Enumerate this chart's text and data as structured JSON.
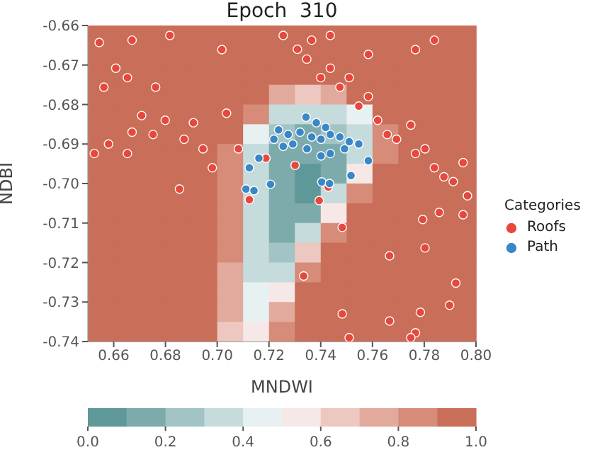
{
  "chart_data": [
    {
      "type": "scatter",
      "title": "Epoch  310",
      "xlabel": "MNDWI",
      "ylabel": "NDBI",
      "legend_title": "Categories",
      "legend": "right",
      "marker": "circle",
      "xlim": [
        0.65,
        0.8
      ],
      "xticks": [
        0.66,
        0.68,
        {
          "value": 0.7,
          "label": "0.70"
        },
        0.72,
        0.74,
        0.76,
        0.78,
        {
          "value": 0.8,
          "label": "0.80"
        }
      ],
      "ylim": [
        -0.74,
        -0.66
      ],
      "yticks": [
        -0.74,
        -0.73,
        -0.72,
        -0.71,
        {
          "value": -0.7,
          "label": "-0.70"
        },
        -0.69,
        -0.68,
        -0.67,
        -0.66
      ],
      "series": [
        {
          "name": "Roofs",
          "color": "#e8473c",
          "x": [
            0.7255,
            0.7346,
            0.74,
            0.7474,
            0.7547,
            0.762,
            0.7693,
            0.7766,
            0.7839,
            0.7912,
            0.7967,
            0.731,
            0.7437,
            0.7584,
            0.7657,
            0.7748,
            0.7803,
            0.7876,
            0.795,
            0.751,
            0.7365,
            0.7437,
            0.7584,
            0.7766,
            0.7839,
            0.6544,
            0.6671,
            0.6817,
            0.7018,
            0.6608,
            0.6653,
            0.6562,
            0.6762,
            0.6708,
            0.6799,
            0.6908,
            0.6671,
            0.658,
            0.6752,
            0.6872,
            0.6945,
            0.6653,
            0.6981,
            0.6854,
            0.6525,
            0.7036,
            0.7082,
            0.7794,
            0.7858,
            0.7803,
            0.7666,
            0.7922,
            0.7898,
            0.7785,
            0.7483,
            0.7666,
            0.7766,
            0.7748,
            0.751,
            0.795,
            0.7301,
            0.7394,
            0.7334,
            0.7188,
            0.7124,
            0.7429,
            0.7483
          ],
          "values": [
            -0.6625,
            -0.6685,
            -0.6732,
            -0.6756,
            -0.6804,
            -0.684,
            -0.6888,
            -0.6924,
            -0.696,
            -0.6995,
            -0.7031,
            -0.666,
            -0.6708,
            -0.678,
            -0.6876,
            -0.6852,
            -0.6912,
            -0.6983,
            -0.6947,
            -0.6732,
            -0.6637,
            -0.6625,
            -0.6673,
            -0.6661,
            -0.6637,
            -0.6643,
            -0.6637,
            -0.6625,
            -0.6661,
            -0.6708,
            -0.6732,
            -0.6756,
            -0.6756,
            -0.6828,
            -0.684,
            -0.6846,
            -0.687,
            -0.69,
            -0.6876,
            -0.6888,
            -0.6912,
            -0.6924,
            -0.696,
            -0.7014,
            -0.6924,
            -0.6822,
            -0.6912,
            -0.7091,
            -0.7073,
            -0.7163,
            -0.7183,
            -0.7252,
            -0.7308,
            -0.7326,
            -0.733,
            -0.7348,
            -0.7378,
            -0.739,
            -0.739,
            -0.7079,
            -0.6954,
            -0.7043,
            -0.7234,
            -0.6936,
            -0.7041,
            -0.7009,
            -0.7111
          ]
        },
        {
          "name": "Path",
          "color": "#3a87c8",
          "x": [
            0.7343,
            0.7383,
            0.7237,
            0.7274,
            0.732,
            0.7365,
            0.7401,
            0.7437,
            0.7474,
            0.751,
            0.7547,
            0.7219,
            0.7292,
            0.7347,
            0.7401,
            0.7437,
            0.7492,
            0.7584,
            0.7124,
            0.7161,
            0.7111,
            0.7142,
            0.7206,
            0.7404,
            0.7434,
            0.7517,
            0.7419,
            0.7255
          ],
          "values": [
            -0.6832,
            -0.6846,
            -0.6864,
            -0.6876,
            -0.687,
            -0.6882,
            -0.6888,
            -0.6876,
            -0.6882,
            -0.6894,
            -0.69,
            -0.6888,
            -0.69,
            -0.6912,
            -0.693,
            -0.6924,
            -0.6912,
            -0.6942,
            -0.696,
            -0.6936,
            -0.7014,
            -0.7018,
            -0.7002,
            -0.6996,
            -0.7,
            -0.698,
            -0.6858,
            -0.6906
          ]
        }
      ]
    },
    {
      "type": "heatmap",
      "categories": [
        null,
        null,
        null,
        null,
        null,
        null,
        null,
        null,
        null,
        null,
        null,
        null,
        null,
        null,
        null
      ],
      "y_categories": [
        null,
        null,
        null,
        null,
        null,
        null,
        null,
        null,
        null,
        null,
        null,
        null,
        null,
        null,
        null,
        null
      ],
      "cells": [
        [
          0.95,
          0.95,
          0.95,
          0.95,
          0.95,
          0.95,
          0.95,
          0.95,
          0.95,
          0.95,
          0.95,
          0.95,
          0.95,
          0.95,
          0.95
        ],
        [
          0.95,
          0.95,
          0.95,
          0.95,
          0.95,
          0.95,
          0.95,
          0.95,
          0.95,
          0.95,
          0.95,
          0.95,
          0.95,
          0.95,
          0.95
        ],
        [
          0.95,
          0.95,
          0.95,
          0.95,
          0.95,
          0.95,
          0.95,
          0.95,
          0.95,
          0.95,
          0.95,
          0.95,
          0.95,
          0.95,
          0.95
        ],
        [
          0.95,
          0.95,
          0.95,
          0.95,
          0.95,
          0.95,
          0.9,
          0.7,
          0.65,
          0.7,
          0.9,
          0.95,
          0.95,
          0.95,
          0.95
        ],
        [
          0.95,
          0.95,
          0.95,
          0.95,
          0.95,
          0.95,
          0.8,
          0.3,
          0.3,
          0.3,
          0.4,
          0.9,
          0.95,
          0.95,
          0.95
        ],
        [
          0.95,
          0.95,
          0.95,
          0.95,
          0.95,
          0.9,
          0.45,
          0.2,
          0.15,
          0.2,
          0.3,
          0.8,
          0.95,
          0.95,
          0.95
        ],
        [
          0.95,
          0.95,
          0.95,
          0.95,
          0.95,
          0.85,
          0.35,
          0.15,
          0.1,
          0.15,
          0.35,
          0.85,
          0.95,
          0.95,
          0.95
        ],
        [
          0.95,
          0.95,
          0.95,
          0.95,
          0.95,
          0.85,
          0.3,
          0.1,
          0.05,
          0.15,
          0.55,
          0.95,
          0.95,
          0.95,
          0.95
        ],
        [
          0.95,
          0.95,
          0.95,
          0.95,
          0.95,
          0.85,
          0.3,
          0.1,
          0.05,
          0.3,
          0.85,
          0.95,
          0.95,
          0.95,
          0.95
        ],
        [
          0.95,
          0.95,
          0.95,
          0.95,
          0.95,
          0.85,
          0.3,
          0.1,
          0.15,
          0.55,
          0.95,
          0.95,
          0.95,
          0.95,
          0.95
        ],
        [
          0.95,
          0.95,
          0.95,
          0.95,
          0.95,
          0.8,
          0.3,
          0.15,
          0.35,
          0.85,
          0.95,
          0.95,
          0.95,
          0.95,
          0.95
        ],
        [
          0.95,
          0.95,
          0.95,
          0.95,
          0.95,
          0.8,
          0.35,
          0.25,
          0.6,
          0.95,
          0.95,
          0.95,
          0.95,
          0.95,
          0.95
        ],
        [
          0.95,
          0.95,
          0.95,
          0.95,
          0.95,
          0.75,
          0.35,
          0.35,
          0.85,
          0.95,
          0.95,
          0.95,
          0.95,
          0.95,
          0.95
        ],
        [
          0.95,
          0.95,
          0.95,
          0.95,
          0.95,
          0.75,
          0.4,
          0.55,
          0.95,
          0.95,
          0.95,
          0.95,
          0.95,
          0.95,
          0.95
        ],
        [
          0.95,
          0.95,
          0.95,
          0.95,
          0.95,
          0.7,
          0.45,
          0.75,
          0.95,
          0.95,
          0.95,
          0.95,
          0.95,
          0.95,
          0.95
        ],
        [
          0.95,
          0.95,
          0.95,
          0.95,
          0.9,
          0.65,
          0.5,
          0.85,
          0.95,
          0.95,
          0.95,
          0.95,
          0.95,
          0.95,
          0.95
        ]
      ],
      "clim": [
        0,
        1
      ],
      "cticks": [
        {
          "value": 0,
          "label": "0.0"
        },
        {
          "value": 0.2,
          "label": "0.2"
        },
        {
          "value": 0.4,
          "label": "0.4"
        },
        {
          "value": 0.6,
          "label": "0.6"
        },
        {
          "value": 0.8,
          "label": "0.8"
        },
        {
          "value": 1,
          "label": "1.0"
        }
      ]
    }
  ]
}
